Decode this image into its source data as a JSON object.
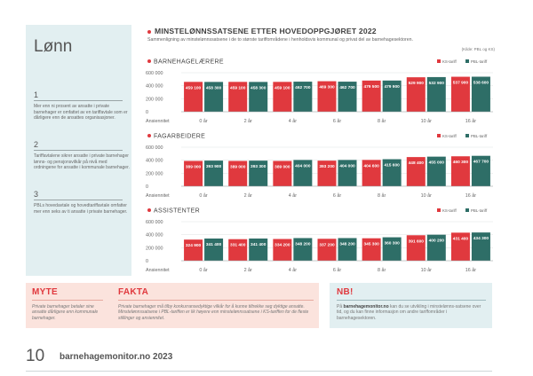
{
  "sidebar": {
    "title": "Lønn",
    "items": [
      {
        "num": "1",
        "text": "Mer enn ni prosent av ansatte i private barnehager er omfattet av en tariffavtale som er dårligere enn de ansattes organisasjoner."
      },
      {
        "num": "2",
        "text": "Tariffavtalene sikrer ansatte i private barnehager lønns- og pensjonsvilkår på nivå med ordningene for ansatte i kommunale barnehager."
      },
      {
        "num": "3",
        "text": "PBLs hovedavtale og hovedtariffavtale omfatter mer enn seks av ti ansatte i private barnehager."
      }
    ]
  },
  "header": {
    "title": "MINSTELØNNSSATSENE ETTER HOVEDOPPGJØRET 2022",
    "subtitle": "Sammenligning av minstelønnssatsene i de to største tariffområdene i henholdsvis kommunal og privat del av barnehagesektoren.",
    "note": "(Kilde: PBL og KS)"
  },
  "colors": {
    "ks": "#e0393e",
    "pbl": "#2e6e67",
    "accent": "#e0393e"
  },
  "chart_data": [
    {
      "type": "bar",
      "title": "BARNEHAGELÆRERE",
      "xlabel": "Ansiennitet",
      "categories": [
        "0 år",
        "2 år",
        "4 år",
        "6 år",
        "8 år",
        "10 år",
        "16 år"
      ],
      "series": [
        {
          "name": "KS-tariff",
          "values": [
            459100,
            459100,
            459100,
            469300,
            479500,
            529900,
            537900
          ],
          "labels": [
            "459 100",
            "459 100",
            "459 100",
            "469 300",
            "479 500",
            "529 900",
            "537 900"
          ]
        },
        {
          "name": "PBL-tariff",
          "values": [
            458300,
            458300,
            462700,
            462700,
            479900,
            532900,
            538600
          ],
          "labels": [
            "458 300",
            "458 300",
            "462 700",
            "462 700",
            "479 900",
            "532 900",
            "538 600"
          ]
        }
      ],
      "yticks": [
        "600 000",
        "400 000",
        "200 000",
        "0"
      ],
      "ylim": [
        0,
        600000
      ]
    },
    {
      "type": "bar",
      "title": "FAGARBEIDERE",
      "xlabel": "Ansiennitet",
      "categories": [
        "0 år",
        "2 år",
        "4 år",
        "6 år",
        "8 år",
        "10 år",
        "16 år"
      ],
      "series": [
        {
          "name": "KS-tariff",
          "values": [
            389000,
            389000,
            389000,
            393200,
            404600,
            448400,
            460300
          ],
          "labels": [
            "389 000",
            "389 000",
            "389 000",
            "393 200",
            "404 600",
            "448 400",
            "460 300"
          ]
        },
        {
          "name": "PBL-tariff",
          "values": [
            393900,
            393300,
            404000,
            404000,
            415600,
            455000,
            467700
          ],
          "labels": [
            "393 900",
            "393 300",
            "404 000",
            "404 000",
            "415 600",
            "455 000",
            "467 700"
          ]
        }
      ],
      "yticks": [
        "600 000",
        "400 000",
        "200 000",
        "0"
      ],
      "ylim": [
        0,
        600000
      ]
    },
    {
      "type": "bar",
      "title": "ASSISTENTER",
      "xlabel": "Ansiennitet",
      "categories": [
        "0 år",
        "2 år",
        "4 år",
        "6 år",
        "8 år",
        "10 år",
        "16 år"
      ],
      "series": [
        {
          "name": "KS-tariff",
          "values": [
            324900,
            331400,
            334200,
            337200,
            345300,
            391600,
            431400
          ],
          "labels": [
            "324 900",
            "331 400",
            "334 200",
            "337 200",
            "345 300",
            "391 600",
            "431 400"
          ]
        },
        {
          "name": "PBL-tariff",
          "values": [
            341400,
            341400,
            348200,
            348200,
            360300,
            400200,
            434300
          ],
          "labels": [
            "341 400",
            "341 400",
            "348 200",
            "348 200",
            "360 300",
            "400 200",
            "434 300"
          ]
        }
      ],
      "yticks": [
        "600 000",
        "400 000",
        "200 000",
        "0"
      ],
      "ylim": [
        0,
        600000
      ]
    }
  ],
  "myte": {
    "heading": "MYTE",
    "text": "Private barnehager betaler sine ansatte dårligere enn kommunale barnehager."
  },
  "fakta": {
    "heading": "FAKTA",
    "text": "Private barnehager må tilby konkurransedyktige vilkår for å kunne tiltrekke seg dyktige ansatte. Minstelønnssatsene i PBL-tariffen er lik høyere enn minstelønnssatsene i KS-tariffen for de fleste stillinger og ansiennitet."
  },
  "nb": {
    "heading": "NB!",
    "link": "barnehagemonitor.no",
    "text_pre": "På",
    "text_post": "kan du se utvikling i minstelønns-satsene over tid, og du kan finne informasjon om andre tariffområder i barnehagesektoren."
  },
  "footer": {
    "page": "10",
    "site": "barnehagemonitor.no 2023"
  }
}
